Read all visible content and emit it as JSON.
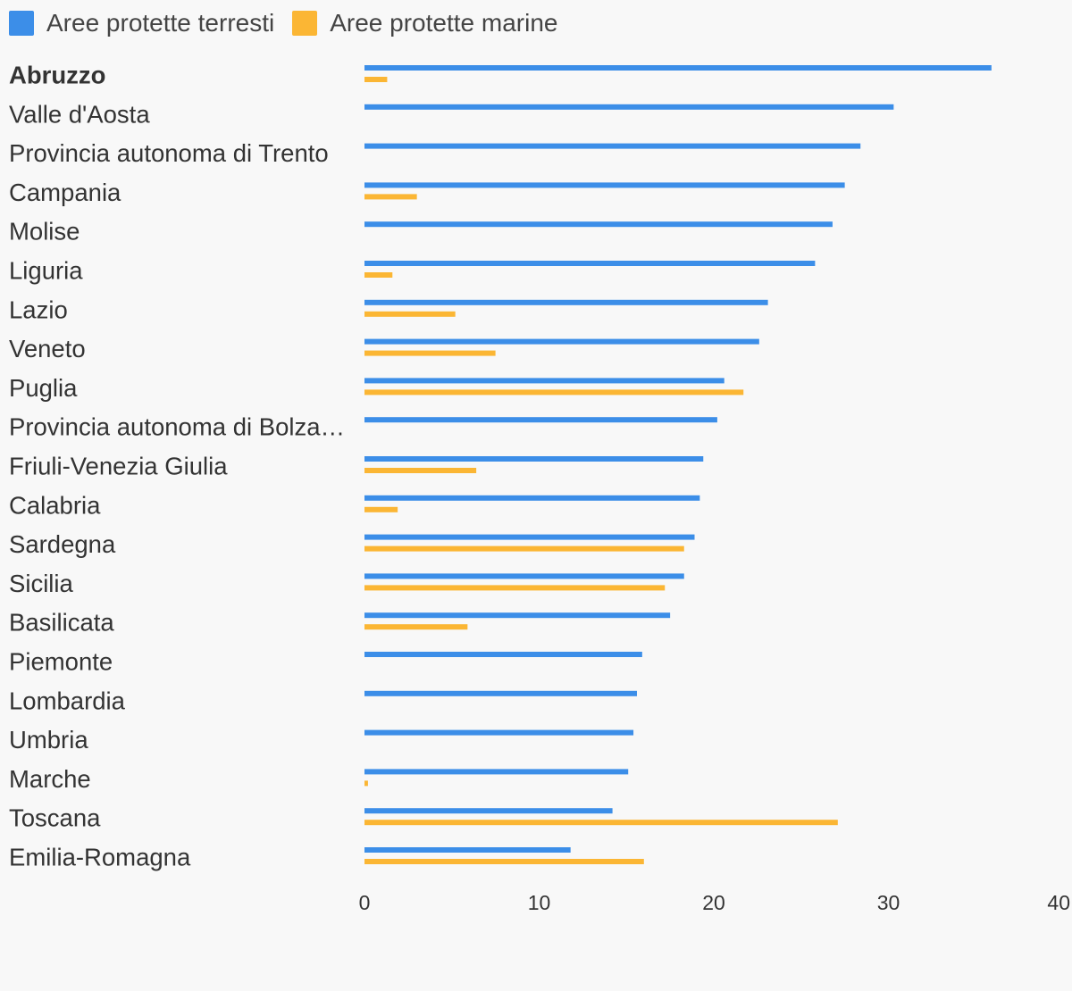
{
  "chart_data": {
    "type": "bar",
    "orientation": "horizontal",
    "categories": [
      "Abruzzo",
      "Valle d'Aosta",
      "Provincia autonoma di Trento",
      "Campania",
      "Molise",
      "Liguria",
      "Lazio",
      "Veneto",
      "Puglia",
      "Provincia autonoma di Bolza…",
      "Friuli-Venezia Giulia",
      "Calabria",
      "Sardegna",
      "Sicilia",
      "Basilicata",
      "Piemonte",
      "Lombardia",
      "Umbria",
      "Marche",
      "Toscana",
      "Emilia-Romagna"
    ],
    "highlighted_category": "Abruzzo",
    "series": [
      {
        "name": "Aree protette terresti",
        "color": "#3c8ee8",
        "values": [
          35.9,
          30.3,
          28.4,
          27.5,
          26.8,
          25.8,
          23.1,
          22.6,
          20.6,
          20.2,
          19.4,
          19.2,
          18.9,
          18.3,
          17.5,
          15.9,
          15.6,
          15.4,
          15.1,
          14.2,
          11.8
        ]
      },
      {
        "name": "Aree protette marine",
        "color": "#fbb634",
        "values": [
          1.3,
          null,
          null,
          3.0,
          null,
          1.6,
          5.2,
          7.5,
          21.7,
          null,
          6.4,
          1.9,
          18.3,
          17.2,
          5.9,
          null,
          null,
          null,
          0.2,
          27.1,
          16.0
        ]
      }
    ],
    "xlim": [
      0,
      40
    ],
    "xticks": [
      "0",
      "10",
      "20",
      "30",
      "40"
    ],
    "title": "",
    "xlabel": "",
    "ylabel": "",
    "legend_position": "top-left",
    "grid": false
  }
}
